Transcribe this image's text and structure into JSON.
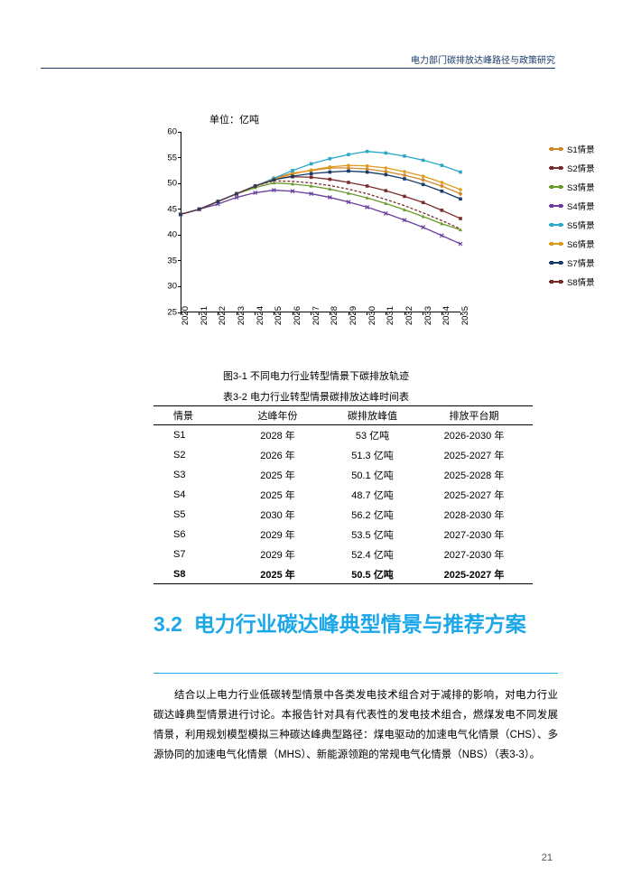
{
  "header": {
    "title": "电力部门碳排放达峰路径与政策研究"
  },
  "chart": {
    "type": "line",
    "unit_label": "单位：亿吨",
    "x": [
      2020,
      2021,
      2022,
      2023,
      2024,
      2025,
      2026,
      2027,
      2028,
      2029,
      2030,
      2031,
      2032,
      2033,
      2034,
      2035
    ],
    "ylim": [
      25,
      60
    ],
    "ytick_step": 5,
    "axis_color": "#000000",
    "label_fontsize": 9.5,
    "plot_bg": "#ffffff",
    "series": [
      {
        "name": "S1情景",
        "color": "#d08a2a",
        "marker": "diamond",
        "values": [
          44,
          45,
          46.5,
          48,
          49.5,
          51,
          52,
          52.5,
          53,
          53,
          52.8,
          52.3,
          51.6,
          50.7,
          49.5,
          48
        ]
      },
      {
        "name": "S2情景",
        "color": "#7a2d2d",
        "marker": "square",
        "values": [
          44,
          45,
          46.5,
          48,
          49.5,
          50.8,
          51.3,
          51.2,
          50.8,
          50.2,
          49.5,
          48.6,
          47.5,
          46.3,
          44.8,
          43.2
        ]
      },
      {
        "name": "S3情景",
        "color": "#6a9a2a",
        "marker": "triangle",
        "values": [
          44,
          45,
          46.5,
          48,
          49.2,
          50.1,
          49.9,
          49.5,
          48.9,
          48.1,
          47.2,
          46.1,
          44.9,
          43.6,
          42.2,
          41
        ]
      },
      {
        "name": "S4情景",
        "color": "#6a3fa0",
        "marker": "x",
        "values": [
          44,
          45,
          46,
          47.3,
          48.2,
          48.7,
          48.5,
          48,
          47.3,
          46.4,
          45.4,
          44.2,
          42.9,
          41.5,
          39.9,
          38.3
        ]
      },
      {
        "name": "S5情景",
        "color": "#2aa8c8",
        "marker": "square",
        "values": [
          44,
          45,
          46.5,
          48,
          49.5,
          51,
          52.5,
          53.8,
          54.8,
          55.6,
          56.2,
          55.9,
          55.3,
          54.5,
          53.5,
          52.2
        ]
      },
      {
        "name": "S6情景",
        "color": "#e09a1a",
        "marker": "circle",
        "values": [
          44,
          45,
          46.5,
          48,
          49.5,
          50.8,
          51.8,
          52.6,
          53.2,
          53.5,
          53.4,
          53,
          52.3,
          51.4,
          50.2,
          48.8
        ]
      },
      {
        "name": "S7情景",
        "color": "#1a3a6a",
        "marker": "square",
        "values": [
          44,
          45,
          46.5,
          48,
          49.5,
          50.7,
          51.4,
          51.9,
          52.2,
          52.4,
          52.2,
          51.7,
          50.9,
          49.8,
          48.5,
          47
        ]
      },
      {
        "name": "S8情景",
        "color": "#7a2d2d",
        "marker": "dash",
        "values": [
          44,
          45,
          46.5,
          48,
          49.5,
          50.5,
          50.4,
          50.1,
          49.6,
          48.9,
          48,
          46.9,
          45.7,
          44.3,
          42.8,
          41.2
        ]
      }
    ]
  },
  "captions": {
    "figure": "图3-1 不同电力行业转型情景下碳排放轨迹",
    "table": "表3-2 电力行业转型情景碳排放达峰时间表"
  },
  "table": {
    "columns": [
      "情景",
      "达峰年份",
      "碳排放峰值",
      "排放平台期"
    ],
    "rows": [
      [
        "S1",
        "2028 年",
        "53 亿吨",
        "2026-2030 年"
      ],
      [
        "S2",
        "2026 年",
        "51.3 亿吨",
        "2025-2027 年"
      ],
      [
        "S3",
        "2025 年",
        "50.1 亿吨",
        "2025-2028 年"
      ],
      [
        "S4",
        "2025 年",
        "48.7 亿吨",
        "2025-2027 年"
      ],
      [
        "S5",
        "2030 年",
        "56.2 亿吨",
        "2028-2030 年"
      ],
      [
        "S6",
        "2029 年",
        "53.5 亿吨",
        "2027-2030 年"
      ],
      [
        "S7",
        "2029 年",
        "52.4 亿吨",
        "2027-2030 年"
      ],
      [
        "S8",
        "2025 年",
        "50.5 亿吨",
        "2025-2027 年"
      ]
    ]
  },
  "section": {
    "number": "3.2",
    "title": "电力行业碳达峰典型情景与推荐方案",
    "heading_color": "#1ca8e8"
  },
  "body": "结合以上电力行业低碳转型情景中各类发电技术组合对于减排的影响，对电力行业碳达峰典型情景进行讨论。本报告针对具有代表性的发电技术组合，燃煤发电不同发展情景，利用规划模型模拟三种碳达峰典型路径：煤电驱动的加速电气化情景（CHS）、多源协同的加速电气化情景（MHS）、新能源领跑的常规电气化情景（NBS）（表3-3）。",
  "page_number": "21"
}
